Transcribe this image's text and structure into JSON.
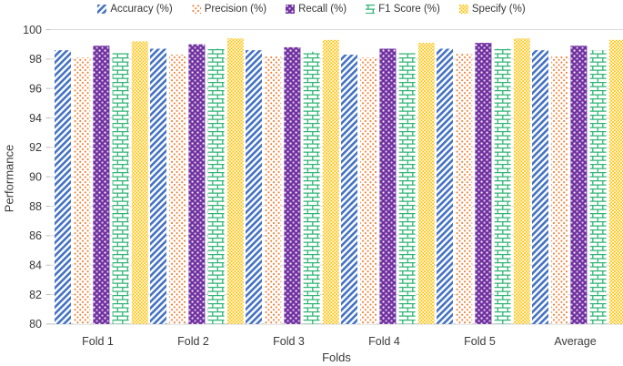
{
  "chart_data": {
    "type": "bar",
    "title": "",
    "categories": [
      "Fold 1",
      "Fold 2",
      "Fold 3",
      "Fold 4",
      "Fold 5",
      "Average"
    ],
    "series": [
      {
        "name": "Accuracy (%)",
        "color": "#4472C4",
        "pattern": "diagonal-stripes",
        "values": [
          98.6,
          98.7,
          98.6,
          98.3,
          98.7,
          98.6
        ]
      },
      {
        "name": "Precision (%)",
        "color": "#ED7D31",
        "pattern": "dots",
        "values": [
          98.1,
          98.3,
          98.2,
          98.1,
          98.4,
          98.2
        ]
      },
      {
        "name": "Recall (%)",
        "color": "#7030A0",
        "pattern": "weave",
        "values": [
          98.9,
          99.0,
          98.8,
          98.7,
          99.1,
          98.9
        ]
      },
      {
        "name": "F1 Score (%)",
        "color": "#2FB576",
        "pattern": "brick",
        "values": [
          98.4,
          98.7,
          98.5,
          98.4,
          98.7,
          98.6
        ]
      },
      {
        "name": "Specify (%)",
        "color": "#FFC000",
        "pattern": "checker",
        "values": [
          99.2,
          99.4,
          99.3,
          99.1,
          99.4,
          99.3
        ]
      }
    ],
    "xlabel": "Folds",
    "ylabel": "Performance",
    "ylim": [
      80,
      100
    ],
    "ytick_step": 2,
    "ytick_labels": [
      "80",
      "82",
      "84",
      "86",
      "88",
      "90",
      "92",
      "94",
      "96",
      "98",
      "100"
    ],
    "grid": true,
    "legend_position": "top",
    "gridline_color": "#DCDCDC",
    "axis_line_color": "#BFBFBF",
    "text_color": "#3a3a3a"
  }
}
